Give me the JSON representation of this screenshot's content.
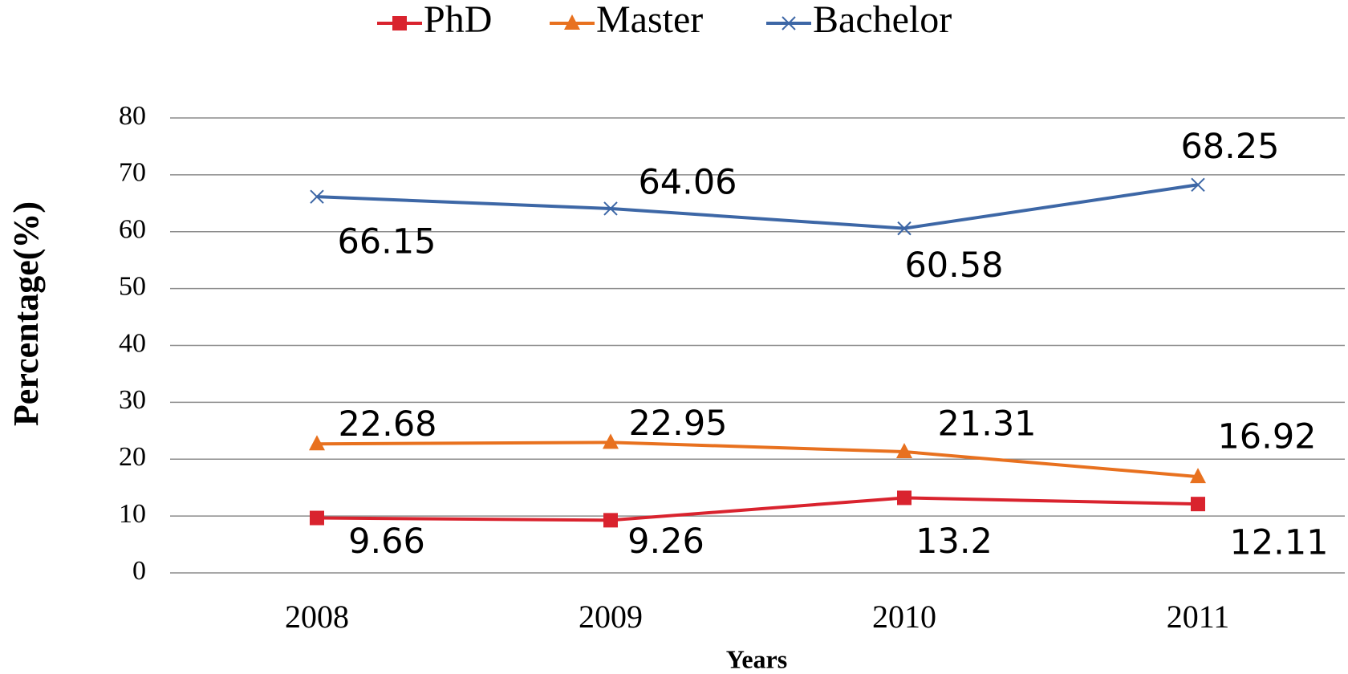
{
  "chart_data": {
    "type": "line",
    "x_label": "Years",
    "y_label": "Percentage(%)",
    "categories": [
      "2008",
      "2009",
      "2010",
      "2011"
    ],
    "series": [
      {
        "name": "PhD",
        "color": "#d9232e",
        "marker": "square",
        "values": [
          9.66,
          9.26,
          13.2,
          12.11
        ]
      },
      {
        "name": "Master",
        "color": "#e8711f",
        "marker": "triangle",
        "values": [
          22.68,
          22.95,
          21.31,
          16.92
        ]
      },
      {
        "name": "Bachelor",
        "color": "#3d67a6",
        "marker": "x",
        "values": [
          66.15,
          64.06,
          60.58,
          68.25
        ]
      }
    ],
    "ylim": [
      0,
      80
    ],
    "yticks": [
      0,
      10,
      20,
      30,
      40,
      50,
      60,
      70,
      80
    ],
    "grid": true,
    "legend": "top"
  }
}
